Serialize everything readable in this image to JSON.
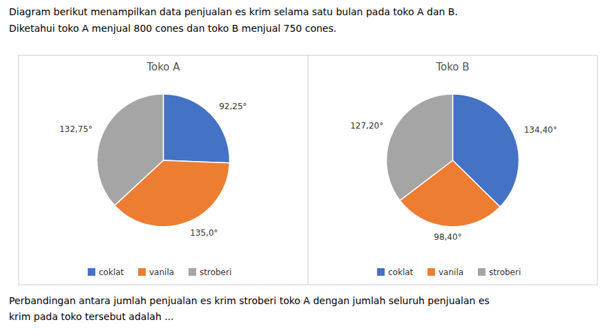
{
  "annotations": [
    "Diagram berikut menampilkan data penjualan es krim selama satu bulan pada toko A dan B.",
    "Diketahui toko A menjual 800 cones dan toko B menjual 750 cones.",
    "Perbandingan antara jumlah penjualan es krim stroberi toko A dengan jumlah seluruh penjualan es",
    "krim pada toko tersebut adalah ..."
  ],
  "chart_data": [
    {
      "type": "pie",
      "title": "Toko A",
      "categories": [
        "coklat",
        "vanila",
        "stroberi"
      ],
      "values": [
        92.25,
        135.0,
        132.75
      ],
      "value_labels": [
        "92,25°",
        "135,0°",
        "132,75°"
      ],
      "colors": [
        "#4472c4",
        "#ed7d31",
        "#a5a5a5"
      ],
      "data_labels": true,
      "legend": "bottom"
    },
    {
      "type": "pie",
      "title": "Toko B",
      "categories": [
        "coklat",
        "vanila",
        "stroberi"
      ],
      "values": [
        134.4,
        98.4,
        127.2
      ],
      "value_labels": [
        "134,40°",
        "98,40°",
        "127,20°"
      ],
      "colors": [
        "#4472c4",
        "#ed7d31",
        "#a5a5a5"
      ],
      "data_labels": true,
      "legend": "bottom"
    }
  ]
}
